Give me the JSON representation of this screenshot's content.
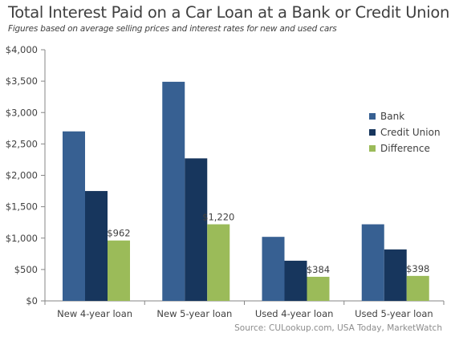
{
  "header": {
    "title": "Total Interest Paid on a Car Loan at a Bank or Credit Union",
    "subtitle": "Figures based on average selling prices and interest rates for new and used cars"
  },
  "footer": {
    "source": "Source: CULookup.com, USA Today, MarketWatch"
  },
  "chart_data": {
    "type": "bar",
    "title": "Total Interest Paid on a Car Loan at a Bank or Credit Union",
    "subtitle": "Figures based on average selling prices and interest rates for new and used cars",
    "categories": [
      "New 4-year loan",
      "New 5-year loan",
      "Used 4-year loan",
      "Used 5-year loan"
    ],
    "series": [
      {
        "name": "Bank",
        "values": [
          2700,
          3490,
          1020,
          1220
        ],
        "color": "#376092"
      },
      {
        "name": "Credit Union",
        "values": [
          1750,
          2270,
          640,
          820
        ],
        "color": "#17365d"
      },
      {
        "name": "Difference",
        "values": [
          962,
          1220,
          384,
          398
        ],
        "color": "#9bbb59"
      }
    ],
    "data_labels": {
      "series": "Difference",
      "labels": [
        "$962",
        "$1,220",
        "$384",
        "$398"
      ]
    },
    "yticks": [
      "$0",
      "$500",
      "$1,000",
      "$1,500",
      "$2,000",
      "$2,500",
      "$3,000",
      "$3,500",
      "$4,000"
    ],
    "ylim": [
      0,
      4000
    ],
    "grid": false,
    "legend_position": "right",
    "xlabel": "",
    "ylabel": ""
  }
}
